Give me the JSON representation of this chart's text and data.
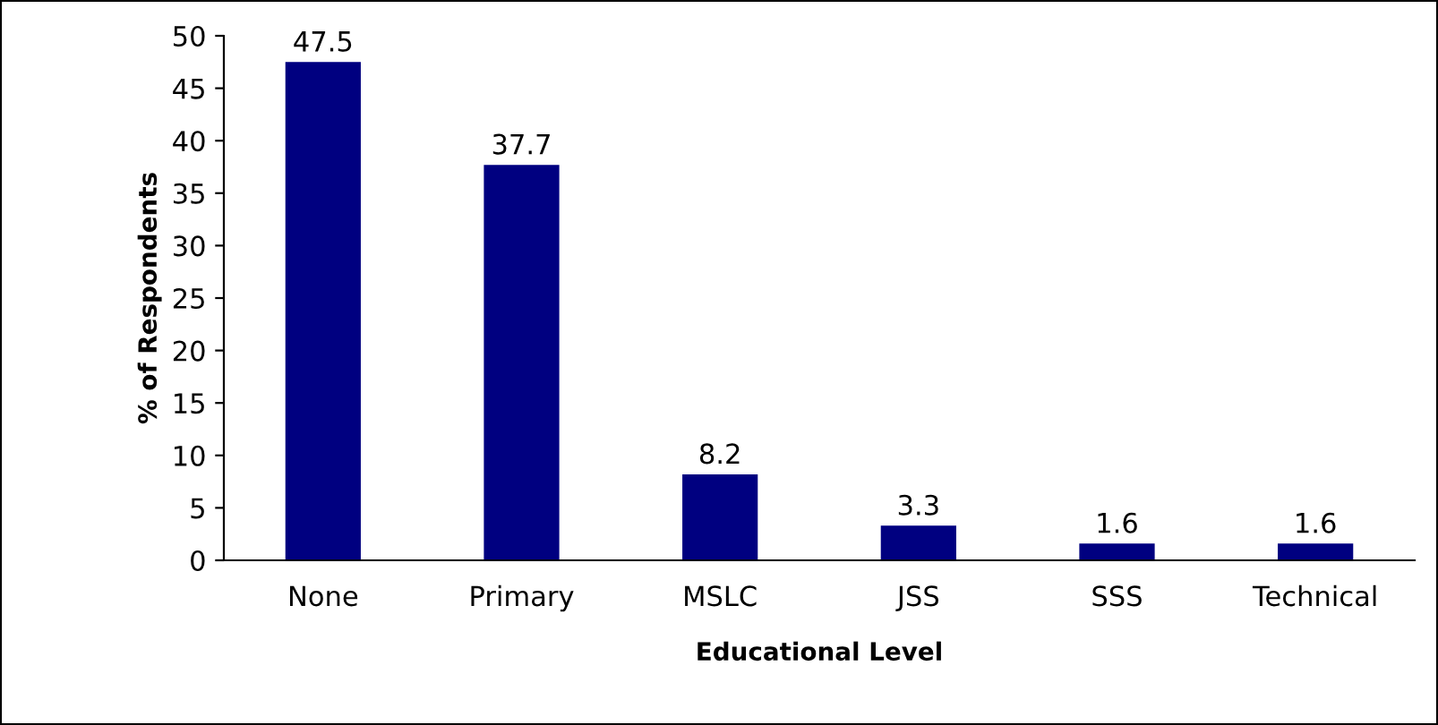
{
  "chart_data": {
    "type": "bar",
    "categories": [
      "None",
      "Primary",
      "MSLC",
      "JSS",
      "SSS",
      "Technical"
    ],
    "values": [
      47.5,
      37.7,
      8.2,
      3.3,
      1.6,
      1.6
    ],
    "color": "#000080",
    "xlabel": "Educational Level",
    "ylabel": "% of Respondents",
    "ylim": [
      0,
      50
    ],
    "yticks": [
      0,
      5,
      10,
      15,
      20,
      25,
      30,
      35,
      40,
      45,
      50
    ],
    "data_labels": true,
    "grid": false,
    "legend": false
  }
}
